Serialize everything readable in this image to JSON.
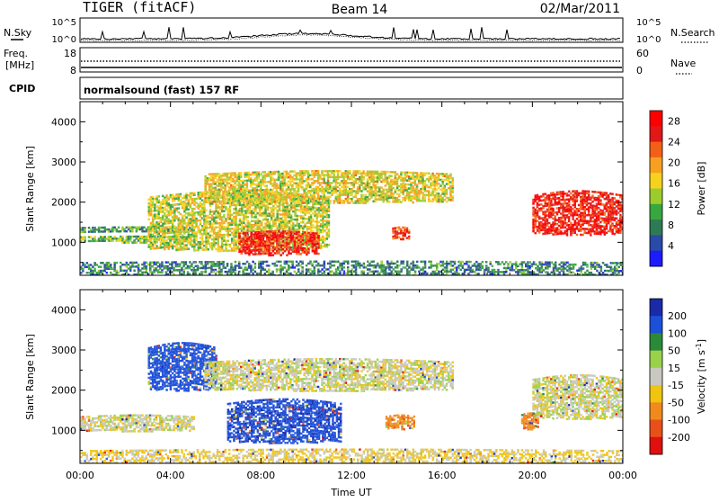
{
  "header": {
    "title": "TIGER (fitACF)",
    "beam": "Beam 14",
    "date": "02/Mar/2011"
  },
  "panels": {
    "nsky": {
      "left_label": "N.Sky",
      "right_label": "N.Search",
      "ytick_top": "10^5",
      "ytick_bottom": "10^0"
    },
    "freq": {
      "left_label_1": "Freq.",
      "left_label_2": "[MHz]",
      "ytick_top": "18",
      "ytick_bottom": "8",
      "right_tick_top": "60",
      "right_tick_bottom": "0",
      "right_label": "Nave"
    },
    "cpid": {
      "label": "CPID",
      "value": "normalsound (fast) 157 RF"
    }
  },
  "chart_data": [
    {
      "type": "heatmap",
      "title": "",
      "ylabel": "Slant Range [km]",
      "xlabel": "",
      "xlim": [
        0,
        24
      ],
      "ylim": [
        180,
        4500
      ],
      "yticks": [
        "1000",
        "2000",
        "3000",
        "4000"
      ],
      "colorbar": {
        "label": "Power [dB]",
        "ticks": [
          "4",
          "8",
          "12",
          "16",
          "20",
          "24",
          "28"
        ],
        "colors": [
          "#1c1cff",
          "#2a4aa8",
          "#2e7a55",
          "#3aa640",
          "#9ccc2c",
          "#f5d21e",
          "#f7a020",
          "#f26018",
          "#e01818",
          "#ff0000"
        ]
      },
      "echo_bands": [
        {
          "t_start": 0.0,
          "t_end": 5.0,
          "range_start": 1020,
          "range_end": 1170,
          "level": 12
        },
        {
          "t_start": 0.0,
          "t_end": 5.0,
          "range_start": 1260,
          "range_end": 1400,
          "level": 10
        },
        {
          "t_start": 3.0,
          "t_end": 11.0,
          "range_start": 800,
          "range_end": 2300,
          "level": 15
        },
        {
          "t_start": 7.0,
          "t_end": 10.5,
          "range_start": 700,
          "range_end": 1300,
          "level": 26
        },
        {
          "t_start": 5.5,
          "t_end": 16.5,
          "range_start": 2000,
          "range_end": 2800,
          "level": 16
        },
        {
          "t_start": 13.8,
          "t_end": 14.5,
          "range_start": 1100,
          "range_end": 1400,
          "level": 24
        },
        {
          "t_start": 20.0,
          "t_end": 24.0,
          "range_start": 1200,
          "range_end": 2300,
          "level": 26
        },
        {
          "t_start": 0.0,
          "t_end": 24.0,
          "range_start": 180,
          "range_end": 550,
          "level": 8
        }
      ]
    },
    {
      "type": "heatmap",
      "title": "",
      "ylabel": "Slant Range [km]",
      "xlabel": "Time UT",
      "xlim": [
        0,
        24
      ],
      "ylim": [
        180,
        4500
      ],
      "xticks": [
        "00:00",
        "04:00",
        "08:00",
        "12:00",
        "16:00",
        "20:00",
        "00:00"
      ],
      "yticks": [
        "1000",
        "2000",
        "3000",
        "4000"
      ],
      "colorbar": {
        "label": "Velocity [m s",
        "label_sup": "-1",
        "label_end": "]",
        "ticks": [
          "200",
          "100",
          "50",
          "15",
          "-15",
          "-50",
          "-100",
          "-200"
        ],
        "colors": [
          "#1a2aa8",
          "#1d4fd8",
          "#2b8a3a",
          "#9ad14a",
          "#c8c8c0",
          "#f1c40f",
          "#f08a1c",
          "#e8501a",
          "#e01010"
        ]
      },
      "echo_bands": [
        {
          "t_start": 0.0,
          "t_end": 5.0,
          "range_start": 1000,
          "range_end": 1400,
          "velocity": 0
        },
        {
          "t_start": 3.0,
          "t_end": 6.0,
          "range_start": 2000,
          "range_end": 3200,
          "velocity": 150
        },
        {
          "t_start": 6.5,
          "t_end": 11.5,
          "range_start": 700,
          "range_end": 1800,
          "velocity": 180
        },
        {
          "t_start": 5.5,
          "t_end": 16.5,
          "range_start": 2000,
          "range_end": 2800,
          "velocity": 0
        },
        {
          "t_start": 13.5,
          "t_end": 14.8,
          "range_start": 1050,
          "range_end": 1400,
          "velocity": -80
        },
        {
          "t_start": 19.5,
          "t_end": 20.2,
          "range_start": 1050,
          "range_end": 1450,
          "velocity": -80
        },
        {
          "t_start": 20.0,
          "t_end": 24.0,
          "range_start": 1300,
          "range_end": 2400,
          "velocity": 0
        },
        {
          "t_start": 0.0,
          "t_end": 24.0,
          "range_start": 180,
          "range_end": 550,
          "velocity": -20
        }
      ]
    }
  ]
}
